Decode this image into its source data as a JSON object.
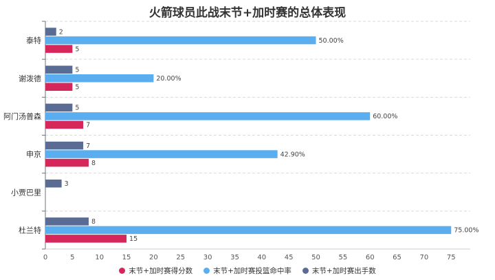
{
  "chart_data": {
    "type": "bar",
    "orientation": "horizontal",
    "title": "火箭球员此战末节+加时赛的总体表现",
    "categories": [
      "泰特",
      "谢泼德",
      "阿门汤普森",
      "申京",
      "小贾巴里",
      "杜兰特"
    ],
    "series": [
      {
        "name": "末节+加时赛得分数",
        "color": "#d6275a",
        "values": [
          5,
          5,
          7,
          8,
          null,
          15
        ],
        "labels": [
          "5",
          "5",
          "7",
          "8",
          "",
          "15"
        ]
      },
      {
        "name": "末节+加时赛投篮命中率",
        "color": "#5aaef0",
        "values": [
          50,
          20,
          60,
          42.9,
          null,
          75
        ],
        "labels": [
          "50.00%",
          "20.00%",
          "60.00%",
          "42.90%",
          "",
          "75.00%"
        ]
      },
      {
        "name": "末节+加时赛出手数",
        "color": "#5a6b94",
        "values": [
          2,
          5,
          5,
          7,
          3,
          8
        ],
        "labels": [
          "2",
          "5",
          "5",
          "7",
          "3",
          "8"
        ]
      }
    ],
    "xlim": [
      0,
      78
    ],
    "x_ticks": [
      "0",
      "5",
      "10",
      "15",
      "20",
      "25",
      "30",
      "35",
      "40",
      "45",
      "50",
      "55",
      "60",
      "65",
      "70",
      "75"
    ],
    "grid": "horizontal dashed between categories",
    "legend_position": "bottom"
  }
}
